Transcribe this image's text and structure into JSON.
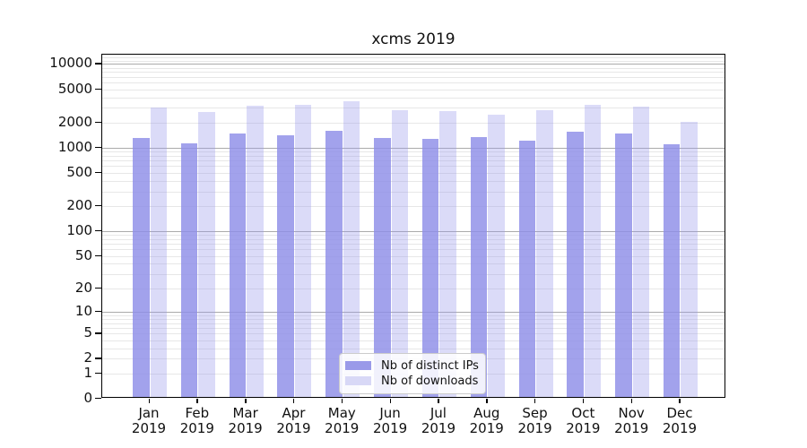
{
  "title": "xcms 2019",
  "legend": {
    "items": [
      {
        "label": "Nb of distinct IPs"
      },
      {
        "label": "Nb of downloads"
      }
    ]
  },
  "chart_data": {
    "type": "bar",
    "title": "xcms 2019",
    "yscale": "log10(1+y)",
    "grid": true,
    "legend_position": "lower center",
    "categories": [
      "Jan",
      "Feb",
      "Mar",
      "Apr",
      "May",
      "Jun",
      "Jul",
      "Aug",
      "Sep",
      "Oct",
      "Nov",
      "Dec"
    ],
    "category_year": "2019",
    "series": [
      {
        "name": "Nb of distinct IPs",
        "color": "#8e8ee8",
        "opacity": 0.82,
        "legend_color": "#9a9ae9",
        "values": [
          1230,
          1080,
          1390,
          1350,
          1500,
          1230,
          1200,
          1265,
          1160,
          1480,
          1420,
          1050
        ]
      },
      {
        "name": "Nb of downloads",
        "color": "#9999eb",
        "opacity": 0.35,
        "legend_color": "#d8d8f6",
        "values": [
          2900,
          2570,
          3030,
          3080,
          3380,
          2650,
          2590,
          2370,
          2680,
          3060,
          2930,
          1945
        ]
      }
    ],
    "y_ticks": [
      10000,
      5000,
      2000,
      1000,
      500,
      200,
      100,
      50,
      20,
      10,
      5,
      2,
      1,
      0
    ],
    "ylim": [
      0,
      13100
    ],
    "grid_major_color": "#ababab",
    "grid_minor_color": "#e7e7e7"
  }
}
